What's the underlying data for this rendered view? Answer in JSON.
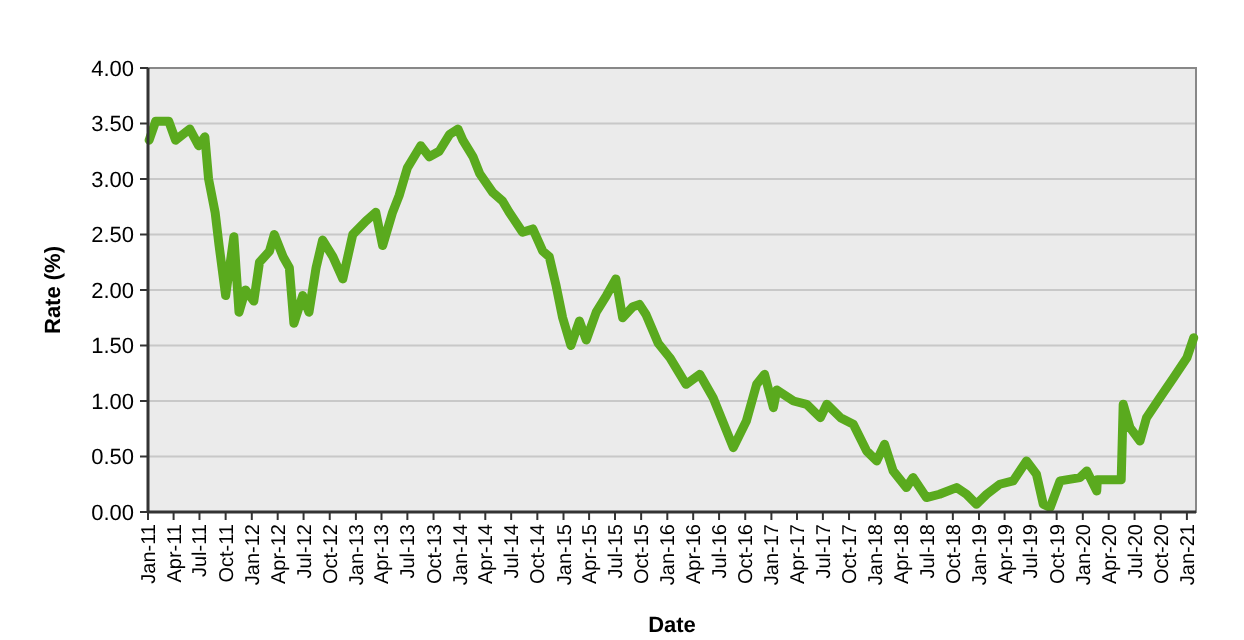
{
  "chart_data": {
    "type": "line",
    "xlabel": "Date",
    "ylabel": "Rate (%)",
    "grid": "y",
    "marker": "none",
    "line_style": "solid",
    "xlim": [
      "2011-01-01",
      "2021-02-02"
    ],
    "ylim": [
      0,
      4
    ],
    "yticks": [
      {
        "value": 0,
        "label": "0.00"
      },
      {
        "value": 0.5,
        "label": "0.50"
      },
      {
        "value": 1,
        "label": "1.00"
      },
      {
        "value": 1.5,
        "label": "1.50"
      },
      {
        "value": 2,
        "label": "2.00"
      },
      {
        "value": 2.5,
        "label": "2.50"
      },
      {
        "value": 3,
        "label": "3.00"
      },
      {
        "value": 3.5,
        "label": "3.50"
      },
      {
        "value": 4,
        "label": "4.00"
      }
    ],
    "xticks": [
      {
        "value": "2011-01",
        "label": "Jan-11"
      },
      {
        "value": "2011-04",
        "label": "Apr-11"
      },
      {
        "value": "2011-07",
        "label": "Jul-11"
      },
      {
        "value": "2011-10",
        "label": "Oct-11"
      },
      {
        "value": "2012-01",
        "label": "Jan-12"
      },
      {
        "value": "2012-04",
        "label": "Apr-12"
      },
      {
        "value": "2012-07",
        "label": "Jul-12"
      },
      {
        "value": "2012-10",
        "label": "Oct-12"
      },
      {
        "value": "2013-01",
        "label": "Jan-13"
      },
      {
        "value": "2013-04",
        "label": "Apr-13"
      },
      {
        "value": "2013-07",
        "label": "Jul-13"
      },
      {
        "value": "2013-10",
        "label": "Oct-13"
      },
      {
        "value": "2014-01",
        "label": "Jan-14"
      },
      {
        "value": "2014-04",
        "label": "Apr-14"
      },
      {
        "value": "2014-07",
        "label": "Jul-14"
      },
      {
        "value": "2014-10",
        "label": "Oct-14"
      },
      {
        "value": "2015-01",
        "label": "Jan-15"
      },
      {
        "value": "2015-04",
        "label": "Apr-15"
      },
      {
        "value": "2015-07",
        "label": "Jul-15"
      },
      {
        "value": "2015-10",
        "label": "Oct-15"
      },
      {
        "value": "2016-01",
        "label": "Jan-16"
      },
      {
        "value": "2016-04",
        "label": "Apr-16"
      },
      {
        "value": "2016-07",
        "label": "Jul-16"
      },
      {
        "value": "2016-10",
        "label": "Oct-16"
      },
      {
        "value": "2017-01",
        "label": "Jan-17"
      },
      {
        "value": "2017-04",
        "label": "Apr-17"
      },
      {
        "value": "2017-07",
        "label": "Jul-17"
      },
      {
        "value": "2017-10",
        "label": "Oct-17"
      },
      {
        "value": "2018-01",
        "label": "Jan-18"
      },
      {
        "value": "2018-04",
        "label": "Apr-18"
      },
      {
        "value": "2018-07",
        "label": "Jul-18"
      },
      {
        "value": "2018-10",
        "label": "Oct-18"
      },
      {
        "value": "2019-01",
        "label": "Jan-19"
      },
      {
        "value": "2019-04",
        "label": "Apr-19"
      },
      {
        "value": "2019-07",
        "label": "Jul-19"
      },
      {
        "value": "2019-10",
        "label": "Oct-19"
      },
      {
        "value": "2020-01",
        "label": "Jan-20"
      },
      {
        "value": "2020-04",
        "label": "Apr-20"
      },
      {
        "value": "2020-07",
        "label": "Jul-20"
      },
      {
        "value": "2020-10",
        "label": "Oct-20"
      },
      {
        "value": "2021-01",
        "label": "Jan-21"
      }
    ],
    "series": [
      {
        "color": "#5aaa1e",
        "x": [
          "2011-01-05",
          "2011-01-28",
          "2011-03-15",
          "2011-04-08",
          "2011-05-28",
          "2011-06-28",
          "2011-07-20",
          "2011-08-02",
          "2011-08-25",
          "2011-09-08",
          "2011-10-01",
          "2011-10-30",
          "2011-11-17",
          "2011-12-10",
          "2012-01-08",
          "2012-01-28",
          "2012-03-03",
          "2012-03-20",
          "2012-04-20",
          "2012-05-12",
          "2012-05-28",
          "2012-06-28",
          "2012-07-20",
          "2012-08-14",
          "2012-09-06",
          "2012-10-12",
          "2012-11-16",
          "2012-12-21",
          "2013-02-05",
          "2013-03-12",
          "2013-04-05",
          "2013-05-10",
          "2013-06-02",
          "2013-07-01",
          "2013-08-17",
          "2013-09-16",
          "2013-10-21",
          "2013-11-26",
          "2013-12-26",
          "2014-01-12",
          "2014-02-17",
          "2014-03-12",
          "2014-04-27",
          "2014-06-01",
          "2014-06-24",
          "2014-08-10",
          "2014-09-15",
          "2014-10-20",
          "2014-11-12",
          "2014-12-05",
          "2014-12-29",
          "2015-01-27",
          "2015-02-26",
          "2015-03-22",
          "2015-04-26",
          "2015-06-01",
          "2015-07-04",
          "2015-07-28",
          "2015-09-02",
          "2015-09-25",
          "2015-10-18",
          "2015-11-30",
          "2016-01-10",
          "2016-03-07",
          "2016-04-24",
          "2016-06-10",
          "2016-08-20",
          "2016-10-05",
          "2016-11-10",
          "2016-12-08",
          "2017-01-08",
          "2017-01-20",
          "2017-03-20",
          "2017-05-05",
          "2017-06-22",
          "2017-07-15",
          "2017-09-01",
          "2017-10-16",
          "2017-12-02",
          "2018-01-06",
          "2018-02-03",
          "2018-03-05",
          "2018-04-21",
          "2018-05-14",
          "2018-06-30",
          "2018-08-15",
          "2018-10-14",
          "2018-11-18",
          "2018-12-23",
          "2019-01-28",
          "2019-03-15",
          "2019-05-01",
          "2019-06-17",
          "2019-07-22",
          "2019-08-15",
          "2019-09-08",
          "2019-10-13",
          "2019-12-22",
          "2020-01-15",
          "2020-02-19",
          "2020-02-21",
          "2020-05-15",
          "2020-05-22",
          "2020-06-15",
          "2020-07-20",
          "2020-08-12",
          "2020-09-28",
          "2020-11-15",
          "2021-01-01",
          "2021-01-25"
        ],
        "values": [
          3.35,
          3.52,
          3.52,
          3.35,
          3.45,
          3.3,
          3.38,
          3.0,
          2.7,
          2.4,
          1.95,
          2.48,
          1.8,
          2.0,
          1.9,
          2.25,
          2.35,
          2.5,
          2.3,
          2.2,
          1.7,
          1.95,
          1.8,
          2.2,
          2.45,
          2.3,
          2.1,
          2.5,
          2.62,
          2.7,
          2.4,
          2.7,
          2.85,
          3.1,
          3.3,
          3.2,
          3.25,
          3.4,
          3.45,
          3.35,
          3.2,
          3.05,
          2.88,
          2.8,
          2.7,
          2.52,
          2.55,
          2.35,
          2.3,
          2.05,
          1.75,
          1.5,
          1.72,
          1.55,
          1.8,
          1.95,
          2.1,
          1.75,
          1.85,
          1.87,
          1.78,
          1.52,
          1.39,
          1.15,
          1.24,
          1.03,
          0.58,
          0.82,
          1.15,
          1.24,
          0.94,
          1.1,
          1.0,
          0.97,
          0.85,
          0.97,
          0.85,
          0.79,
          0.55,
          0.46,
          0.61,
          0.37,
          0.22,
          0.31,
          0.13,
          0.16,
          0.22,
          0.16,
          0.07,
          0.16,
          0.25,
          0.28,
          0.46,
          0.34,
          0.07,
          0.04,
          0.28,
          0.31,
          0.37,
          0.19,
          0.29,
          0.29,
          0.97,
          0.76,
          0.64,
          0.85,
          1.03,
          1.21,
          1.39,
          1.57
        ]
      }
    ]
  }
}
